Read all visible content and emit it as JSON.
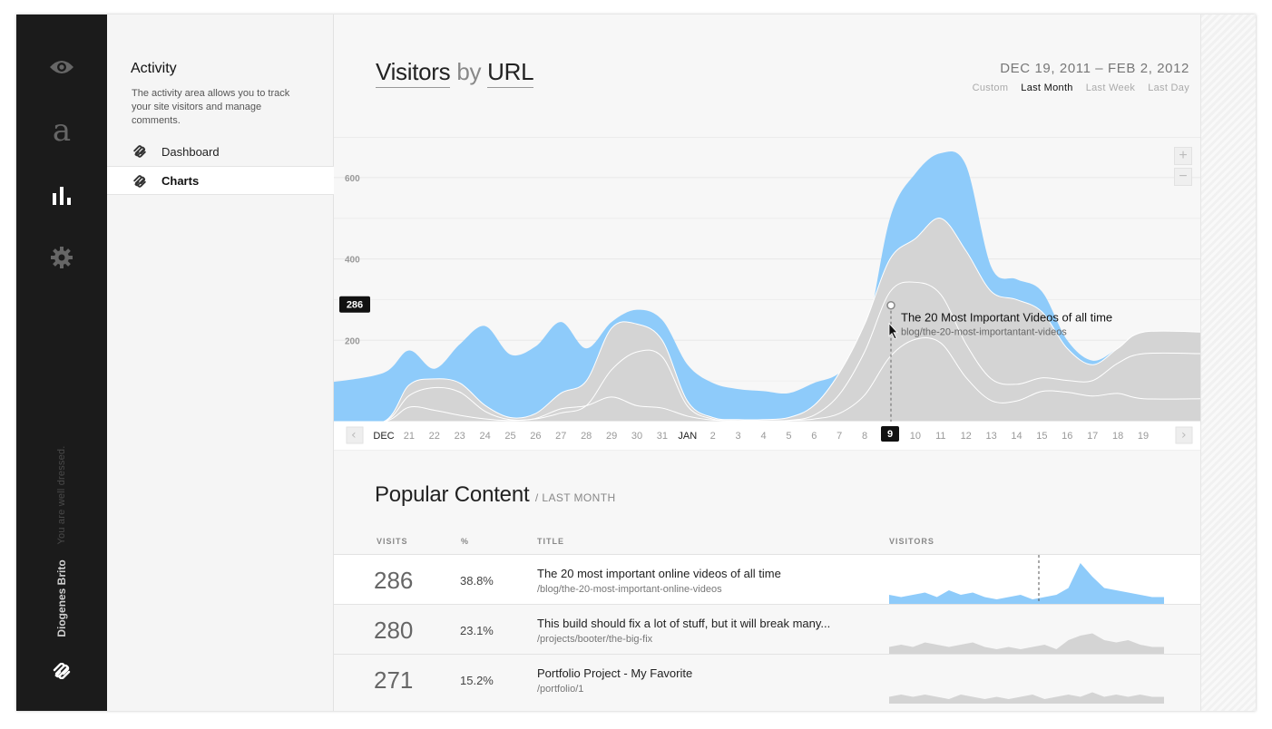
{
  "rail": {
    "tagline": "You are well dressed.",
    "user": "Diogenes Brito"
  },
  "sidebar": {
    "title": "Activity",
    "description": "The activity area allows you to track your site visitors and manage comments.",
    "items": [
      {
        "label": "Dashboard",
        "active": false
      },
      {
        "label": "Charts",
        "active": true
      }
    ]
  },
  "header": {
    "title_part1": "Visitors",
    "title_by": "by",
    "title_part2": "URL",
    "date_range": "DEC 19, 2011 – FEB 2, 2012",
    "ranges": [
      "Custom",
      "Last Month",
      "Last Week",
      "Last Day"
    ],
    "active_range": "Last Month"
  },
  "colors": {
    "accent": "#8ecbfa",
    "grey_area": "#d4d4d4",
    "dark": "#1b1b1b"
  },
  "chart_data": {
    "type": "area",
    "ylim": [
      0,
      680
    ],
    "yticks": [
      200,
      400,
      600
    ],
    "x_labels": [
      "DEC",
      "21",
      "22",
      "23",
      "24",
      "25",
      "26",
      "27",
      "28",
      "29",
      "30",
      "31",
      "JAN",
      "2",
      "3",
      "4",
      "5",
      "6",
      "7",
      "8",
      "9",
      "10",
      "11",
      "12",
      "13",
      "14",
      "15",
      "16",
      "17",
      "18",
      "19"
    ],
    "highlight_label": "9",
    "highlight_index": 20,
    "hover_value": "286",
    "tooltip_title": "The 20 Most Important Videos of all time",
    "tooltip_url": "blog/the-20-most-importantant-videos",
    "series": [
      {
        "color": "#8ecbfa",
        "values": [
          120,
          175,
          130,
          190,
          235,
          165,
          185,
          245,
          180,
          245,
          275,
          250,
          140,
          95,
          80,
          75,
          70,
          95,
          120,
          200,
          500,
          610,
          660,
          630,
          380,
          350,
          320,
          200,
          150,
          180,
          220
        ]
      },
      {
        "color": "#d4d4d4",
        "values": [
          0,
          90,
          105,
          95,
          40,
          10,
          20,
          70,
          100,
          230,
          240,
          200,
          50,
          10,
          5,
          5,
          10,
          40,
          120,
          240,
          400,
          450,
          500,
          420,
          320,
          300,
          270,
          180,
          140,
          180,
          220
        ]
      }
    ]
  },
  "popular": {
    "title": "Popular Content",
    "subtitle": "/ LAST MONTH",
    "columns": [
      "VISITS",
      "%",
      "TITLE",
      "VISITORS"
    ],
    "rows": [
      {
        "visits": "286",
        "pct": "38.8%",
        "title": "The 20 most important online videos of all time",
        "url": "/blog/the-20-most-important-online-videos",
        "spark": [
          0.2,
          0.15,
          0.2,
          0.25,
          0.15,
          0.3,
          0.2,
          0.25,
          0.15,
          0.1,
          0.15,
          0.2,
          0.1,
          0.15,
          0.2,
          0.35,
          0.9,
          0.6,
          0.35,
          0.3,
          0.25,
          0.2,
          0.15,
          0.15
        ],
        "highlight": true
      },
      {
        "visits": "280",
        "pct": "23.1%",
        "title": "This build should fix a lot of stuff, but it will break many...",
        "url": "/projects/booter/the-big-fix",
        "spark": [
          0.15,
          0.2,
          0.15,
          0.25,
          0.2,
          0.15,
          0.2,
          0.25,
          0.15,
          0.1,
          0.15,
          0.1,
          0.15,
          0.2,
          0.1,
          0.3,
          0.4,
          0.45,
          0.3,
          0.25,
          0.3,
          0.2,
          0.15,
          0.15
        ],
        "highlight": false
      },
      {
        "visits": "271",
        "pct": "15.2%",
        "title": "Portfolio Project - My Favorite",
        "url": "/portfolio/1",
        "spark": [
          0.15,
          0.2,
          0.15,
          0.2,
          0.15,
          0.1,
          0.2,
          0.15,
          0.1,
          0.15,
          0.1,
          0.15,
          0.2,
          0.1,
          0.15,
          0.2,
          0.15,
          0.25,
          0.15,
          0.2,
          0.15,
          0.2,
          0.15,
          0.15
        ],
        "highlight": false
      }
    ]
  }
}
